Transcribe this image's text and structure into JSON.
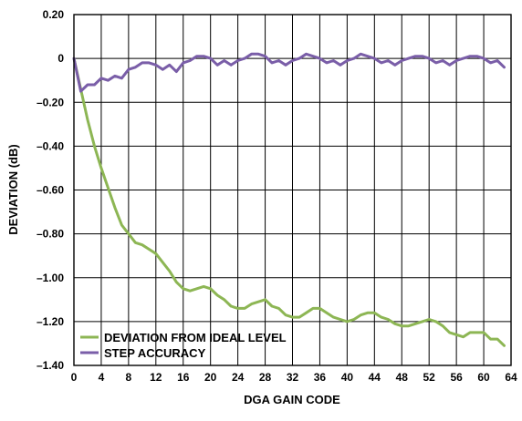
{
  "chart_data": {
    "type": "line",
    "xlabel": "DGA GAIN CODE",
    "ylabel": "DEVIATION (dB)",
    "xlim": [
      0,
      64
    ],
    "ylim": [
      -1.4,
      0.2
    ],
    "xticks": [
      0,
      4,
      8,
      12,
      16,
      20,
      24,
      28,
      32,
      36,
      40,
      44,
      48,
      52,
      56,
      60,
      64
    ],
    "xtick_labels": [
      "0",
      "4",
      "8",
      "12",
      "16",
      "20",
      "24",
      "28",
      "32",
      "36",
      "40",
      "44",
      "48",
      "52",
      "56",
      "60",
      "64"
    ],
    "yticks": [
      0.2,
      0,
      -0.2,
      -0.4,
      -0.6,
      -0.8,
      -1.0,
      -1.2,
      -1.4
    ],
    "ytick_labels": [
      "0.20",
      "0",
      "–0.20",
      "–0.40",
      "–0.60",
      "–0.80",
      "–1.00",
      "–1.20",
      "–1.40"
    ],
    "grid": true,
    "legend_position": "bottom-left",
    "colors": {
      "deviation": "#8db654",
      "step": "#7a5ea8"
    },
    "series": [
      {
        "name": "DEVIATION FROM IDEAL LEVEL",
        "color": "#8db654",
        "x": [
          0,
          1,
          2,
          3,
          4,
          5,
          6,
          7,
          8,
          9,
          10,
          11,
          12,
          13,
          14,
          15,
          16,
          17,
          18,
          19,
          20,
          21,
          22,
          23,
          24,
          25,
          26,
          27,
          28,
          29,
          30,
          31,
          32,
          33,
          34,
          35,
          36,
          37,
          38,
          39,
          40,
          41,
          42,
          43,
          44,
          45,
          46,
          47,
          48,
          49,
          50,
          51,
          52,
          53,
          54,
          55,
          56,
          57,
          58,
          59,
          60,
          61,
          62,
          63
        ],
        "values": [
          0,
          -0.14,
          -0.28,
          -0.4,
          -0.5,
          -0.59,
          -0.68,
          -0.76,
          -0.8,
          -0.84,
          -0.85,
          -0.87,
          -0.89,
          -0.93,
          -0.97,
          -1.02,
          -1.05,
          -1.06,
          -1.05,
          -1.04,
          -1.05,
          -1.08,
          -1.1,
          -1.13,
          -1.14,
          -1.14,
          -1.12,
          -1.11,
          -1.1,
          -1.13,
          -1.14,
          -1.17,
          -1.18,
          -1.18,
          -1.16,
          -1.14,
          -1.14,
          -1.16,
          -1.18,
          -1.19,
          -1.2,
          -1.19,
          -1.17,
          -1.16,
          -1.16,
          -1.18,
          -1.19,
          -1.21,
          -1.22,
          -1.22,
          -1.21,
          -1.2,
          -1.19,
          -1.2,
          -1.22,
          -1.25,
          -1.26,
          -1.27,
          -1.25,
          -1.25,
          -1.25,
          -1.28,
          -1.28,
          -1.31
        ]
      },
      {
        "name": "STEP ACCURACY",
        "color": "#7a5ea8",
        "x": [
          0,
          1,
          2,
          3,
          4,
          5,
          6,
          7,
          8,
          9,
          10,
          11,
          12,
          13,
          14,
          15,
          16,
          17,
          18,
          19,
          20,
          21,
          22,
          23,
          24,
          25,
          26,
          27,
          28,
          29,
          30,
          31,
          32,
          33,
          34,
          35,
          36,
          37,
          38,
          39,
          40,
          41,
          42,
          43,
          44,
          45,
          46,
          47,
          48,
          49,
          50,
          51,
          52,
          53,
          54,
          55,
          56,
          57,
          58,
          59,
          60,
          61,
          62,
          63
        ],
        "values": [
          0,
          -0.15,
          -0.12,
          -0.12,
          -0.09,
          -0.1,
          -0.08,
          -0.09,
          -0.05,
          -0.04,
          -0.02,
          -0.02,
          -0.03,
          -0.05,
          -0.03,
          -0.06,
          -0.02,
          -0.01,
          0.01,
          0.01,
          0,
          -0.03,
          -0.01,
          -0.03,
          -0.01,
          0,
          0.02,
          0.02,
          0.01,
          -0.02,
          -0.01,
          -0.03,
          -0.01,
          0,
          0.02,
          0.01,
          0,
          -0.02,
          -0.01,
          -0.03,
          -0.01,
          0,
          0.02,
          0.01,
          0,
          -0.02,
          -0.01,
          -0.03,
          -0.01,
          0,
          0.01,
          0.01,
          0,
          -0.02,
          -0.01,
          -0.03,
          -0.01,
          0,
          0.01,
          0.01,
          0,
          -0.02,
          -0.01,
          -0.04
        ]
      }
    ]
  }
}
